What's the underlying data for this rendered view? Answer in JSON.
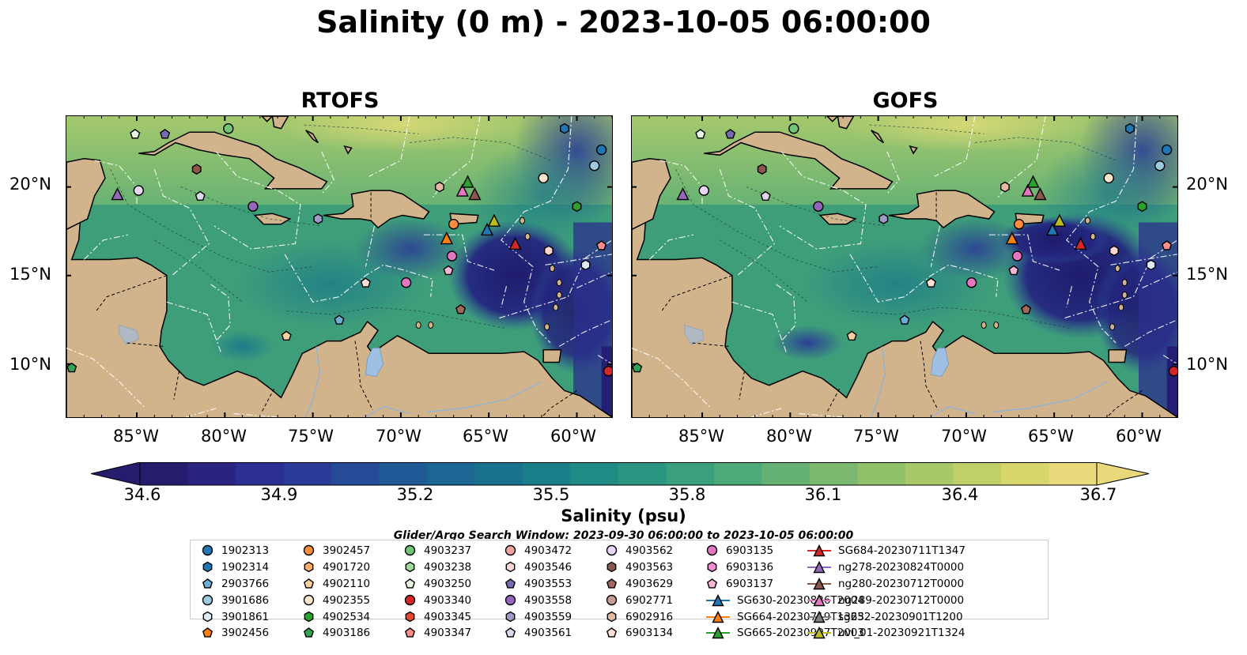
{
  "title": "Salinity (0 m) - 2023-10-05 06:00:00",
  "panels": [
    {
      "title": "RTOFS"
    },
    {
      "title": "GOFS"
    }
  ],
  "lat_labels": [
    "20°N",
    "15°N",
    "10°N"
  ],
  "lon_labels": [
    "85°W",
    "80°W",
    "75°W",
    "70°W",
    "65°W",
    "60°W"
  ],
  "colorbar": {
    "label": "Salinity (psu)",
    "ticks": [
      "34.6",
      "34.9",
      "35.2",
      "35.5",
      "35.8",
      "36.1",
      "36.4",
      "36.7"
    ],
    "colors": [
      "#261c6e",
      "#2a2381",
      "#2b2f92",
      "#2a3b98",
      "#254a98",
      "#1f5996",
      "#1b6692",
      "#19728d",
      "#1a7f89",
      "#1f8b85",
      "#2a9681",
      "#3aa07c",
      "#4ea978",
      "#64b173",
      "#7ab96f",
      "#92c16b",
      "#a9c868",
      "#c1cf68",
      "#d7d66b",
      "#ead97a"
    ]
  },
  "search_window": "Glider/Argo Search Window: 2023-09-30 06:00:00 to 2023-10-05 06:00:00",
  "legend": [
    {
      "label": "1902313",
      "marker": "circle",
      "color": "#1f77b4"
    },
    {
      "label": "1902314",
      "marker": "hexagon",
      "color": "#1f77b4"
    },
    {
      "label": "2903766",
      "marker": "pentagon",
      "color": "#6baed6"
    },
    {
      "label": "3901686",
      "marker": "circle",
      "color": "#9ecae1"
    },
    {
      "label": "3901861",
      "marker": "hexagon",
      "color": "#deebf7"
    },
    {
      "label": "3902456",
      "marker": "pentagon",
      "color": "#ff7f0e"
    },
    {
      "label": "3902457",
      "marker": "circle",
      "color": "#fd8d3c"
    },
    {
      "label": "4901720",
      "marker": "hexagon",
      "color": "#fdae6b"
    },
    {
      "label": "4902110",
      "marker": "pentagon",
      "color": "#fdd0a2"
    },
    {
      "label": "4902355",
      "marker": "circle",
      "color": "#fee6ce"
    },
    {
      "label": "4902534",
      "marker": "hexagon",
      "color": "#2ca02c"
    },
    {
      "label": "4903186",
      "marker": "pentagon",
      "color": "#31a354"
    },
    {
      "label": "4903237",
      "marker": "circle",
      "color": "#74c476"
    },
    {
      "label": "4903238",
      "marker": "hexagon",
      "color": "#a1d99b"
    },
    {
      "label": "4903250",
      "marker": "pentagon",
      "color": "#e5f5e0"
    },
    {
      "label": "4903340",
      "marker": "circle",
      "color": "#d62728"
    },
    {
      "label": "4903345",
      "marker": "hexagon",
      "color": "#e34a33"
    },
    {
      "label": "4903347",
      "marker": "pentagon",
      "color": "#fc8d8d"
    },
    {
      "label": "4903472",
      "marker": "circle",
      "color": "#f4a3a3"
    },
    {
      "label": "4903546",
      "marker": "hexagon",
      "color": "#fcd5d5"
    },
    {
      "label": "4903553",
      "marker": "pentagon",
      "color": "#756bb1"
    },
    {
      "label": "4903558",
      "marker": "circle",
      "color": "#9467bd"
    },
    {
      "label": "4903559",
      "marker": "hexagon",
      "color": "#9e9ac8"
    },
    {
      "label": "4903561",
      "marker": "pentagon",
      "color": "#dadaeb"
    },
    {
      "label": "4903562",
      "marker": "circle",
      "color": "#e9d8fd"
    },
    {
      "label": "4903563",
      "marker": "hexagon",
      "color": "#8c564b"
    },
    {
      "label": "4903629",
      "marker": "pentagon",
      "color": "#a0695c"
    },
    {
      "label": "6902771",
      "marker": "circle",
      "color": "#c49c94"
    },
    {
      "label": "6902916",
      "marker": "hexagon",
      "color": "#e6b8a2"
    },
    {
      "label": "6903134",
      "marker": "pentagon",
      "color": "#fde0d6"
    },
    {
      "label": "6903135",
      "marker": "circle",
      "color": "#e377c2"
    },
    {
      "label": "6903136",
      "marker": "hexagon",
      "color": "#f08dd0"
    },
    {
      "label": "6903137",
      "marker": "pentagon",
      "color": "#f7b6d2"
    },
    {
      "label": "SG630-20230826T2004",
      "marker": "triangle",
      "color": "#1f77b4"
    },
    {
      "label": "SG664-20230719T1323",
      "marker": "triangle",
      "color": "#ff7f0e"
    },
    {
      "label": "SG665-20230907T2003",
      "marker": "triangle",
      "color": "#2ca02c"
    },
    {
      "label": "SG684-20230711T1347",
      "marker": "triangle",
      "color": "#d62728"
    },
    {
      "label": "ng278-20230824T0000",
      "marker": "triangle",
      "color": "#9467bd"
    },
    {
      "label": "ng280-20230712T0000",
      "marker": "triangle",
      "color": "#8c564b"
    },
    {
      "label": "ng289-20230712T0000",
      "marker": "triangle",
      "color": "#e377c2"
    },
    {
      "label": "sg652-20230901T1200",
      "marker": "triangle",
      "color": "#7f7f7f"
    },
    {
      "label": "uvi_01-20230921T1324",
      "marker": "triangle",
      "color": "#bcbd22"
    }
  ],
  "map_extent": {
    "lon": [
      -89,
      -58
    ],
    "lat": [
      7,
      24
    ]
  },
  "observations": [
    {
      "id": "1902313",
      "lon": -58.6,
      "lat": 22.1
    },
    {
      "id": "1902314",
      "lon": -60.7,
      "lat": 23.3
    },
    {
      "id": "3901686",
      "lon": -59.0,
      "lat": 21.2
    },
    {
      "id": "4903237",
      "lon": -79.8,
      "lat": 23.3
    },
    {
      "id": "4903250",
      "lon": -85.1,
      "lat": 23.0
    },
    {
      "id": "4903553",
      "lon": -83.4,
      "lat": 23.0
    },
    {
      "id": "4903563",
      "lon": -81.6,
      "lat": 21.0
    },
    {
      "id": "4903561",
      "lon": -81.4,
      "lat": 19.5
    },
    {
      "id": "4902355",
      "lon": -61.9,
      "lat": 20.5
    },
    {
      "id": "4902534",
      "lon": -60.0,
      "lat": 18.9
    },
    {
      "id": "3901861",
      "lon": -59.5,
      "lat": 15.6
    },
    {
      "id": "4903347",
      "lon": -58.6,
      "lat": 16.7
    },
    {
      "id": "4903562",
      "lon": -84.9,
      "lat": 19.8
    },
    {
      "id": "4903558",
      "lon": -78.4,
      "lat": 18.9
    },
    {
      "id": "4903559",
      "lon": -74.7,
      "lat": 18.2
    },
    {
      "id": "3902457",
      "lon": -67.0,
      "lat": 17.9
    },
    {
      "id": "6903135",
      "lon": -67.1,
      "lat": 16.1
    },
    {
      "id": "6903137",
      "lon": -67.3,
      "lat": 15.3
    },
    {
      "id": "6903134",
      "lon": -72.0,
      "lat": 14.6
    },
    {
      "id": "6903135b",
      "lon": -69.7,
      "lat": 14.6
    },
    {
      "id": "4903629",
      "lon": -66.6,
      "lat": 13.1
    },
    {
      "id": "2903766",
      "lon": -73.5,
      "lat": 12.5
    },
    {
      "id": "4902110",
      "lon": -76.5,
      "lat": 11.6
    },
    {
      "id": "4903186",
      "lon": -88.7,
      "lat": 9.8
    },
    {
      "id": "4903340",
      "lon": -58.2,
      "lat": 9.6
    },
    {
      "id": "6902916",
      "lon": -67.8,
      "lat": 20.0
    },
    {
      "id": "4903546",
      "lon": -61.6,
      "lat": 16.4
    }
  ],
  "gliders": [
    {
      "id": "ng289-20230712T0000",
      "lon": -66.5,
      "lat": 19.8
    },
    {
      "id": "SG665-20230907T2003",
      "lon": -66.2,
      "lat": 20.3
    },
    {
      "id": "ng280-20230712T0000",
      "lon": -65.8,
      "lat": 19.6
    },
    {
      "id": "ng278-20230824T0000",
      "lon": -86.1,
      "lat": 19.6
    },
    {
      "id": "SG664-20230719T1323",
      "lon": -67.4,
      "lat": 17.1
    },
    {
      "id": "SG630-20230826T2004",
      "lon": -65.1,
      "lat": 17.6
    },
    {
      "id": "SG684-20230711T1347",
      "lon": -63.5,
      "lat": 16.8
    },
    {
      "id": "uvi_01-20230921T1324",
      "lon": -64.7,
      "lat": 18.1
    }
  ]
}
